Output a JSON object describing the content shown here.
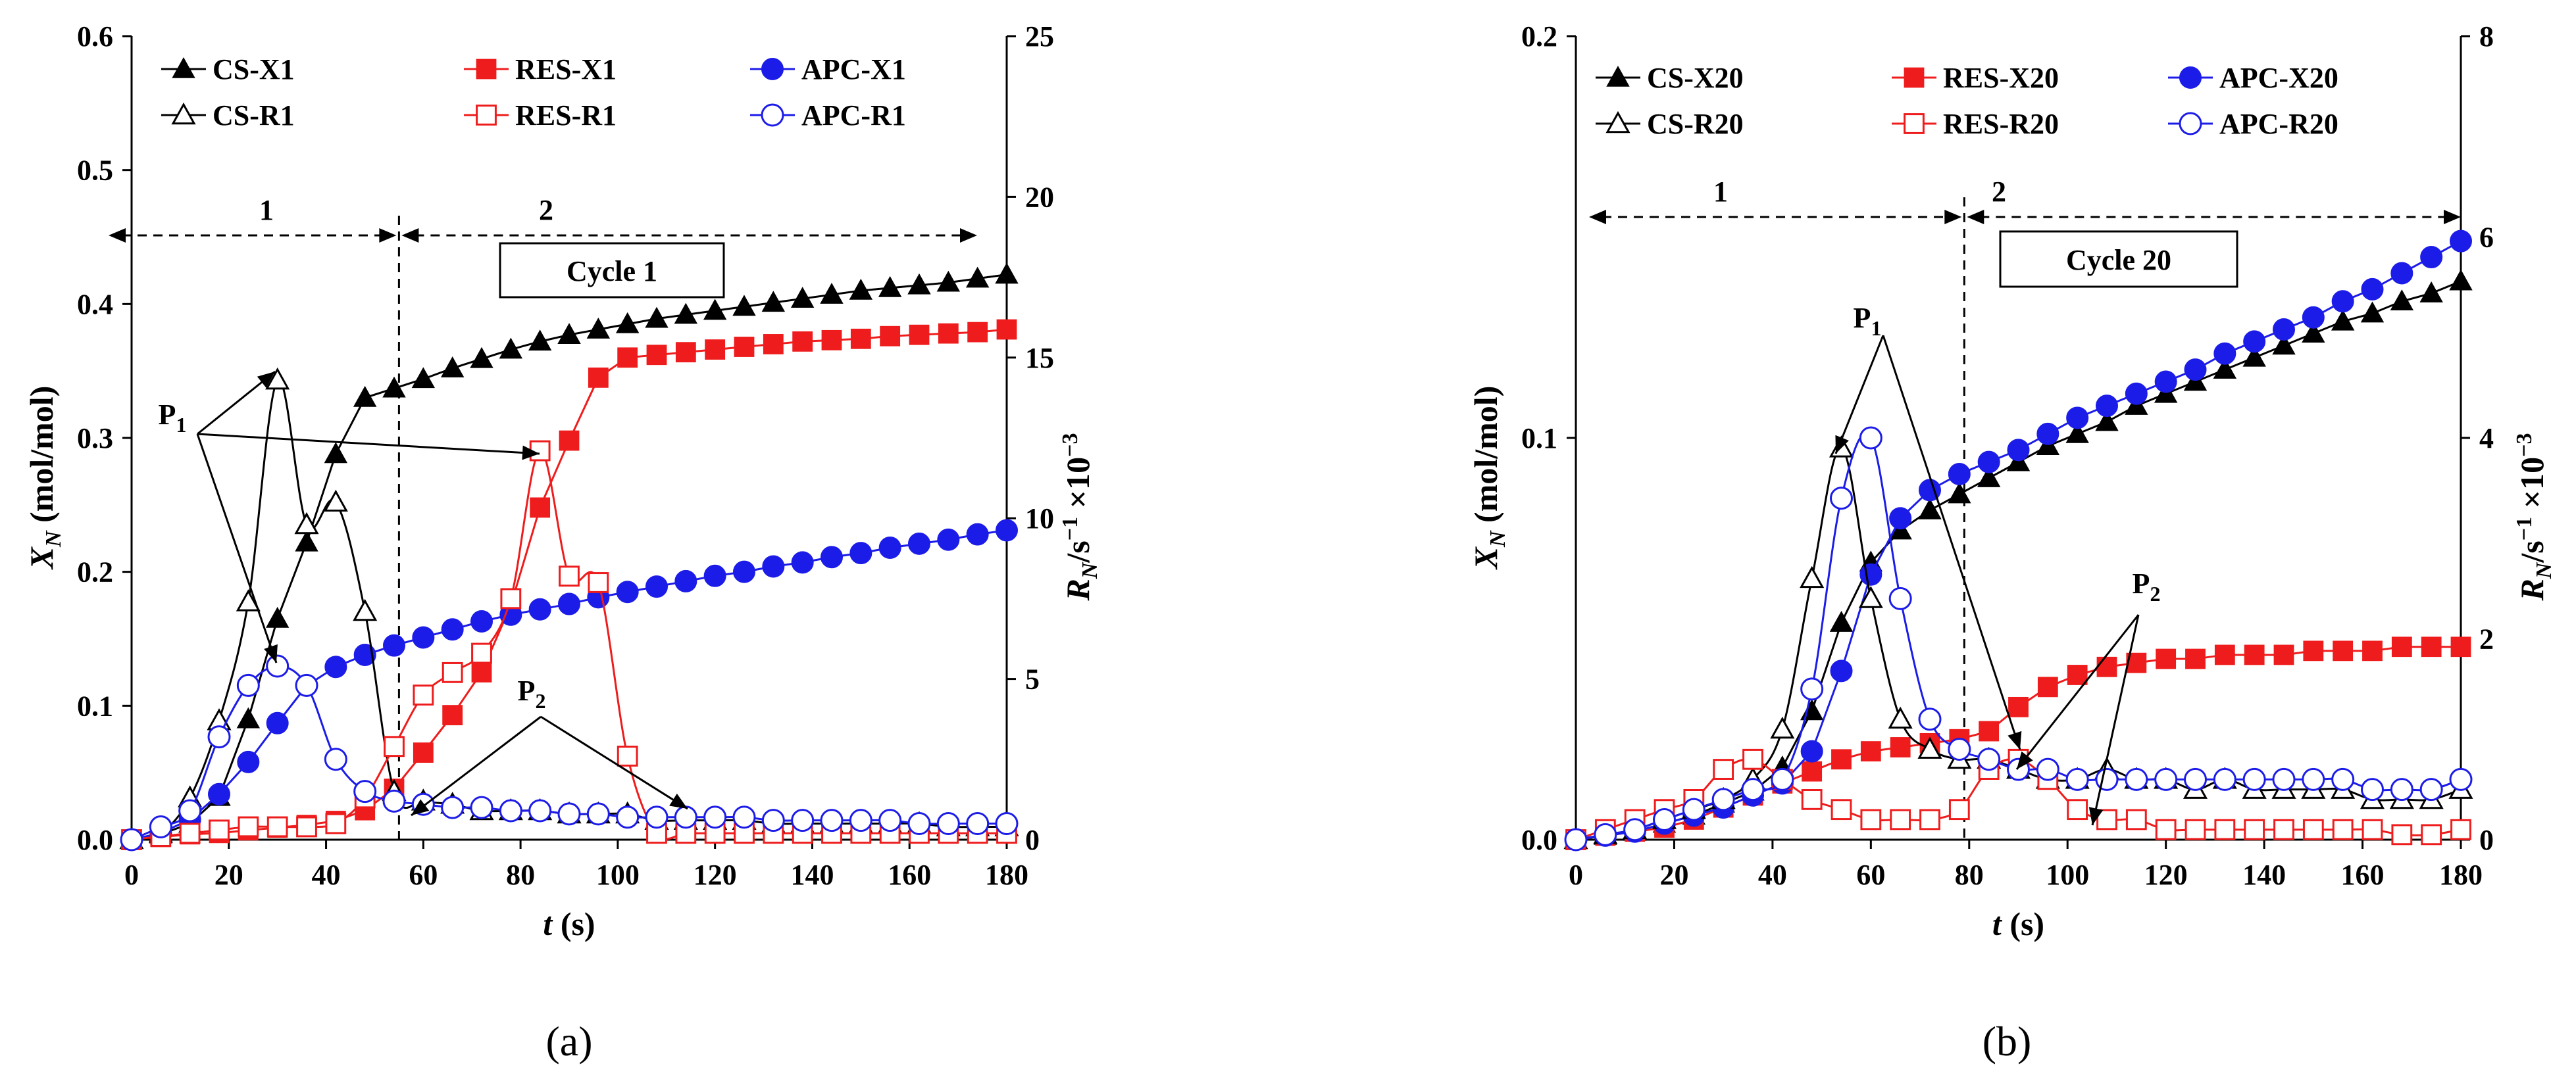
{
  "chart_data": [
    {
      "type": "line",
      "panel_label": "(a)",
      "xlabel_main": "t",
      "xlabel_unit": " (s)",
      "ylabel_main": "X",
      "ylabel_sub": "N",
      "ylabel_unit": " (mol/mol)",
      "y2label_main": "R",
      "y2label_sub": "N",
      "y2label_unit": "/s",
      "y2label_exp": "−1",
      "y2label_scale": "×10",
      "y2label_scale_exp": "−3",
      "xlim": [
        0,
        180
      ],
      "ylim": [
        0,
        0.6
      ],
      "y2lim": [
        0,
        25
      ],
      "xticks": [
        0,
        20,
        40,
        60,
        80,
        100,
        120,
        140,
        160,
        180
      ],
      "yticks": [
        0.0,
        0.1,
        0.2,
        0.3,
        0.4,
        0.5,
        0.6
      ],
      "ytick_labels": [
        "0.0",
        "0.1",
        "0.2",
        "0.3",
        "0.4",
        "0.5",
        "0.6"
      ],
      "y2ticks": [
        0,
        5,
        10,
        15,
        20,
        25
      ],
      "divider_t": 55,
      "cycle_label": "Cycle 1",
      "region_labels": [
        "1",
        "2"
      ],
      "peak_labels": [
        "P",
        "P"
      ],
      "peak_subs": [
        "1",
        "2"
      ],
      "series": [
        {
          "name": "CS-X1",
          "axis": "left",
          "color": "#000000",
          "marker": "triangle",
          "filled": true,
          "x": [
            0,
            6,
            12,
            18,
            24,
            30,
            36,
            42,
            48,
            54,
            60,
            66,
            72,
            78,
            84,
            90,
            96,
            102,
            108,
            114,
            120,
            126,
            132,
            138,
            144,
            150,
            156,
            162,
            168,
            174,
            180
          ],
          "values": [
            0,
            0.004,
            0.012,
            0.032,
            0.09,
            0.165,
            0.222,
            0.288,
            0.33,
            0.337,
            0.344,
            0.352,
            0.359,
            0.366,
            0.372,
            0.377,
            0.381,
            0.385,
            0.389,
            0.392,
            0.395,
            0.398,
            0.401,
            0.404,
            0.407,
            0.41,
            0.412,
            0.414,
            0.416,
            0.419,
            0.422
          ]
        },
        {
          "name": "RES-X1",
          "axis": "left",
          "color": "#ee1c1c",
          "marker": "square",
          "filled": true,
          "x": [
            0,
            6,
            12,
            18,
            24,
            30,
            36,
            42,
            48,
            54,
            60,
            66,
            72,
            78,
            84,
            90,
            96,
            102,
            108,
            114,
            120,
            126,
            132,
            138,
            144,
            150,
            156,
            162,
            168,
            174,
            180
          ],
          "values": [
            0,
            0.002,
            0.004,
            0.005,
            0.007,
            0.009,
            0.011,
            0.014,
            0.022,
            0.038,
            0.065,
            0.093,
            0.125,
            0.175,
            0.248,
            0.298,
            0.345,
            0.36,
            0.362,
            0.364,
            0.366,
            0.368,
            0.37,
            0.372,
            0.373,
            0.374,
            0.376,
            0.377,
            0.378,
            0.379,
            0.381
          ]
        },
        {
          "name": "APC-X1",
          "axis": "left",
          "color": "#1c1ce8",
          "marker": "circle",
          "filled": true,
          "x": [
            0,
            6,
            12,
            18,
            24,
            30,
            36,
            42,
            48,
            54,
            60,
            66,
            72,
            78,
            84,
            90,
            96,
            102,
            108,
            114,
            120,
            126,
            132,
            138,
            144,
            150,
            156,
            162,
            168,
            174,
            180
          ],
          "values": [
            0,
            0.005,
            0.015,
            0.034,
            0.058,
            0.087,
            0.115,
            0.129,
            0.138,
            0.145,
            0.151,
            0.157,
            0.163,
            0.168,
            0.172,
            0.176,
            0.181,
            0.185,
            0.189,
            0.193,
            0.197,
            0.2,
            0.204,
            0.207,
            0.211,
            0.214,
            0.218,
            0.221,
            0.224,
            0.228,
            0.231
          ]
        },
        {
          "name": "CS-R1",
          "axis": "right",
          "color": "#000000",
          "marker": "triangle",
          "filled": false,
          "x": [
            0,
            6,
            12,
            18,
            24,
            30,
            36,
            42,
            48,
            54,
            60,
            66,
            72,
            78,
            84,
            90,
            96,
            102,
            108,
            114,
            120,
            126,
            132,
            138,
            144,
            150,
            156,
            162,
            168,
            174,
            180
          ],
          "values": [
            0,
            0.2,
            1.3,
            3.7,
            7.4,
            14.3,
            9.8,
            10.5,
            7.1,
            1.5,
            1.2,
            1.1,
            0.9,
            0.9,
            0.9,
            0.8,
            0.8,
            0.8,
            0.6,
            0.6,
            0.6,
            0.6,
            0.5,
            0.5,
            0.5,
            0.5,
            0.5,
            0.5,
            0.4,
            0.4,
            0.4
          ]
        },
        {
          "name": "RES-R1",
          "axis": "right",
          "color": "#ee1c1c",
          "marker": "square",
          "filled": false,
          "x": [
            0,
            6,
            12,
            18,
            24,
            30,
            36,
            42,
            48,
            54,
            60,
            66,
            72,
            78,
            84,
            90,
            96,
            102,
            108,
            114,
            120,
            126,
            132,
            138,
            144,
            150,
            156,
            162,
            168,
            174,
            180
          ],
          "values": [
            0,
            0.1,
            0.2,
            0.3,
            0.4,
            0.4,
            0.4,
            0.5,
            1.3,
            2.9,
            4.5,
            5.2,
            5.8,
            7.5,
            12.1,
            8.2,
            8.0,
            2.6,
            0.2,
            0.2,
            0.2,
            0.2,
            0.2,
            0.2,
            0.2,
            0.2,
            0.2,
            0.2,
            0.2,
            0.2,
            0.2
          ]
        },
        {
          "name": "APC-R1",
          "axis": "right",
          "color": "#1c1ce8",
          "marker": "circle",
          "filled": false,
          "x": [
            0,
            6,
            12,
            18,
            24,
            30,
            36,
            42,
            48,
            54,
            60,
            66,
            72,
            78,
            84,
            90,
            96,
            102,
            108,
            114,
            120,
            126,
            132,
            138,
            144,
            150,
            156,
            162,
            168,
            174,
            180
          ],
          "values": [
            0,
            0.4,
            0.9,
            3.2,
            4.8,
            5.4,
            4.8,
            2.5,
            1.5,
            1.2,
            1.1,
            1.0,
            1.0,
            0.9,
            0.9,
            0.8,
            0.8,
            0.7,
            0.7,
            0.7,
            0.7,
            0.7,
            0.6,
            0.6,
            0.6,
            0.6,
            0.6,
            0.5,
            0.5,
            0.5,
            0.5
          ]
        }
      ]
    },
    {
      "type": "line",
      "panel_label": "(b)",
      "xlabel_main": "t",
      "xlabel_unit": " (s)",
      "ylabel_main": "X",
      "ylabel_sub": "N",
      "ylabel_unit": " (mol/mol)",
      "y2label_main": "R",
      "y2label_sub": "N",
      "y2label_unit": "/s",
      "y2label_exp": "−1",
      "y2label_scale": "×10",
      "y2label_scale_exp": "−3",
      "xlim": [
        0,
        180
      ],
      "ylim": [
        0,
        0.2
      ],
      "y2lim": [
        0,
        8
      ],
      "xticks": [
        0,
        20,
        40,
        60,
        80,
        100,
        120,
        140,
        160,
        180
      ],
      "yticks": [
        0.0,
        0.1,
        0.2
      ],
      "ytick_labels": [
        "0.0",
        "0.1",
        "0.2"
      ],
      "y2ticks": [
        0,
        2,
        4,
        6,
        8
      ],
      "divider_t": 79,
      "cycle_label": "Cycle 20",
      "region_labels": [
        "1",
        "2"
      ],
      "peak_labels": [
        "P",
        "P"
      ],
      "peak_subs": [
        "1",
        "2"
      ],
      "series": [
        {
          "name": "CS-X20",
          "axis": "left",
          "color": "#000000",
          "marker": "triangle",
          "filled": true,
          "x": [
            0,
            6,
            12,
            18,
            24,
            30,
            36,
            42,
            48,
            54,
            60,
            66,
            72,
            78,
            84,
            90,
            96,
            102,
            108,
            114,
            120,
            126,
            132,
            138,
            144,
            150,
            156,
            162,
            168,
            174,
            180
          ],
          "values": [
            0,
            0.001,
            0.002,
            0.004,
            0.006,
            0.009,
            0.012,
            0.018,
            0.032,
            0.054,
            0.069,
            0.077,
            0.082,
            0.086,
            0.09,
            0.094,
            0.098,
            0.101,
            0.104,
            0.108,
            0.111,
            0.114,
            0.117,
            0.12,
            0.123,
            0.126,
            0.129,
            0.131,
            0.134,
            0.136,
            0.139
          ]
        },
        {
          "name": "RES-X20",
          "axis": "left",
          "color": "#ee1c1c",
          "marker": "square",
          "filled": true,
          "x": [
            0,
            6,
            12,
            18,
            24,
            30,
            36,
            42,
            48,
            54,
            60,
            66,
            72,
            78,
            84,
            90,
            96,
            102,
            108,
            114,
            120,
            126,
            132,
            138,
            144,
            150,
            156,
            162,
            168,
            174,
            180
          ],
          "values": [
            0,
            0.001,
            0.002,
            0.003,
            0.005,
            0.008,
            0.011,
            0.014,
            0.017,
            0.02,
            0.022,
            0.023,
            0.024,
            0.025,
            0.027,
            0.033,
            0.038,
            0.041,
            0.043,
            0.044,
            0.045,
            0.045,
            0.046,
            0.046,
            0.046,
            0.047,
            0.047,
            0.047,
            0.048,
            0.048,
            0.048
          ]
        },
        {
          "name": "APC-X20",
          "axis": "left",
          "color": "#1c1ce8",
          "marker": "circle",
          "filled": true,
          "x": [
            0,
            6,
            12,
            18,
            24,
            30,
            36,
            42,
            48,
            54,
            60,
            66,
            72,
            78,
            84,
            90,
            96,
            102,
            108,
            114,
            120,
            126,
            132,
            138,
            144,
            150,
            156,
            162,
            168,
            174,
            180
          ],
          "values": [
            0,
            0.001,
            0.002,
            0.004,
            0.006,
            0.008,
            0.011,
            0.014,
            0.022,
            0.042,
            0.066,
            0.08,
            0.087,
            0.091,
            0.094,
            0.097,
            0.101,
            0.105,
            0.108,
            0.111,
            0.114,
            0.117,
            0.121,
            0.124,
            0.127,
            0.13,
            0.134,
            0.137,
            0.141,
            0.145,
            0.149
          ]
        },
        {
          "name": "CS-R20",
          "axis": "right",
          "color": "#000000",
          "marker": "triangle",
          "filled": false,
          "x": [
            0,
            6,
            12,
            18,
            24,
            30,
            36,
            42,
            48,
            54,
            60,
            66,
            72,
            78,
            84,
            90,
            96,
            102,
            108,
            114,
            120,
            126,
            132,
            138,
            144,
            150,
            156,
            162,
            168,
            174,
            180
          ],
          "values": [
            0,
            0.05,
            0.1,
            0.2,
            0.3,
            0.4,
            0.6,
            1.1,
            2.6,
            3.9,
            2.4,
            1.2,
            0.9,
            0.8,
            0.8,
            0.7,
            0.6,
            0.6,
            0.7,
            0.6,
            0.6,
            0.5,
            0.6,
            0.5,
            0.5,
            0.5,
            0.5,
            0.4,
            0.4,
            0.4,
            0.5
          ]
        },
        {
          "name": "RES-R20",
          "axis": "right",
          "color": "#ee1c1c",
          "marker": "square",
          "filled": false,
          "x": [
            0,
            6,
            12,
            18,
            24,
            30,
            36,
            42,
            48,
            54,
            60,
            66,
            72,
            78,
            84,
            90,
            96,
            102,
            108,
            114,
            120,
            126,
            132,
            138,
            144,
            150,
            156,
            162,
            168,
            174,
            180
          ],
          "values": [
            0,
            0.1,
            0.2,
            0.3,
            0.4,
            0.7,
            0.8,
            0.6,
            0.4,
            0.3,
            0.2,
            0.2,
            0.2,
            0.3,
            0.7,
            0.8,
            0.6,
            0.3,
            0.2,
            0.2,
            0.1,
            0.1,
            0.1,
            0.1,
            0.1,
            0.1,
            0.1,
            0.1,
            0.05,
            0.05,
            0.1
          ]
        },
        {
          "name": "APC-R20",
          "axis": "right",
          "color": "#1c1ce8",
          "marker": "circle",
          "filled": false,
          "x": [
            0,
            6,
            12,
            18,
            24,
            30,
            36,
            42,
            48,
            54,
            60,
            66,
            72,
            78,
            84,
            90,
            96,
            102,
            108,
            114,
            120,
            126,
            132,
            138,
            144,
            150,
            156,
            162,
            168,
            174,
            180
          ],
          "values": [
            0,
            0.05,
            0.1,
            0.2,
            0.3,
            0.4,
            0.5,
            0.6,
            1.5,
            3.4,
            4.0,
            2.4,
            1.2,
            0.9,
            0.8,
            0.7,
            0.7,
            0.6,
            0.6,
            0.6,
            0.6,
            0.6,
            0.6,
            0.6,
            0.6,
            0.6,
            0.6,
            0.5,
            0.5,
            0.5,
            0.6
          ]
        }
      ]
    }
  ]
}
